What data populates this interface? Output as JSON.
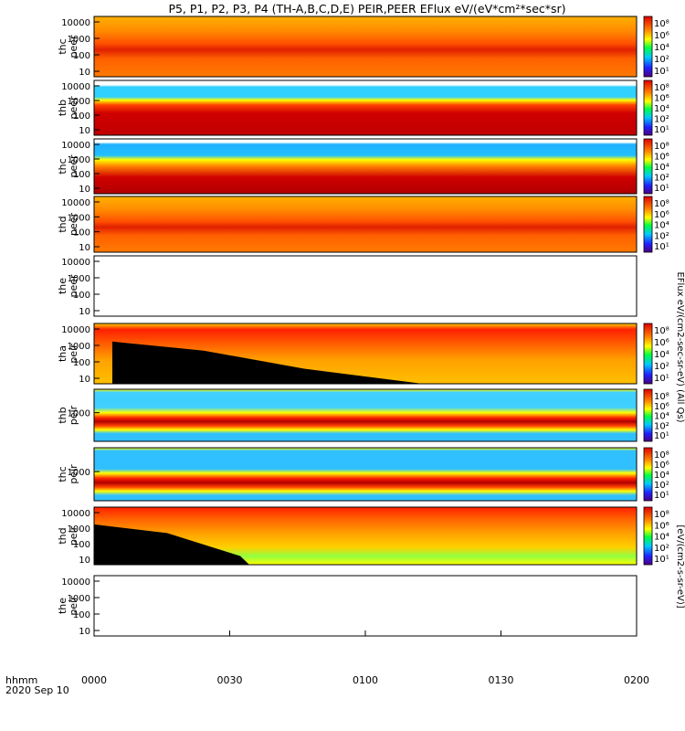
{
  "chart_data": {
    "type": "heatmap",
    "title": "P5, P1, P2, P3, P4 (TH-A,B,C,D,E) PEIR,PEER EFlux eV/(eV*cm²*sec*sr)",
    "time_axis": {
      "row_label": "hhmm",
      "date_label": "2020 Sep 10",
      "ticks": [
        "0000",
        "0030",
        "0100",
        "0130",
        "0200"
      ]
    },
    "colorbar_labels": {
      "peer": "EFlux eV/(cm2-sec-sr-eV)  (All Qs)",
      "peir": "[eV/(cm2-s-sr-eV)]"
    },
    "panels": [
      {
        "probe": "thc",
        "instrument": "peer",
        "y_ticks": [
          "10000",
          "1000",
          "100",
          "10"
        ],
        "pattern": "peer_red",
        "has_colorbar": true
      },
      {
        "probe": "thb",
        "instrument": "peer",
        "y_ticks": [
          "10000",
          "1000",
          "100",
          "10"
        ],
        "pattern": "peer_thb",
        "has_colorbar": true
      },
      {
        "probe": "thc",
        "instrument": "peer",
        "y_ticks": [
          "10000",
          "1000",
          "100",
          "10"
        ],
        "pattern": "peer_thc",
        "has_colorbar": true
      },
      {
        "probe": "thd",
        "instrument": "peer",
        "y_ticks": [
          "10000",
          "1000",
          "100",
          "10"
        ],
        "pattern": "peer_red",
        "has_colorbar": true
      },
      {
        "probe": "the",
        "instrument": "peer",
        "y_ticks": [
          "10000",
          "1000",
          "100",
          "10"
        ],
        "pattern": "empty",
        "has_colorbar": false
      },
      {
        "probe": "tha",
        "instrument": "peir",
        "y_ticks": [
          "10000",
          "1000",
          "100",
          "10"
        ],
        "pattern": "peir_tha",
        "has_colorbar": true
      },
      {
        "probe": "thb",
        "instrument": "peir",
        "y_ticks": [
          "1000"
        ],
        "pattern": "peir_thb",
        "has_colorbar": true
      },
      {
        "probe": "thc",
        "instrument": "peir",
        "y_ticks": [
          "1000"
        ],
        "pattern": "peir_thc",
        "has_colorbar": true
      },
      {
        "probe": "thd",
        "instrument": "peir",
        "y_ticks": [
          "10000",
          "1000",
          "100",
          "10"
        ],
        "pattern": "peir_thd",
        "has_colorbar": true
      },
      {
        "probe": "the",
        "instrument": "peir",
        "y_ticks": [
          "10000",
          "1000",
          "100",
          "10"
        ],
        "pattern": "empty",
        "has_colorbar": false
      }
    ],
    "colorbar_ticks": [
      "10⁸",
      "10⁶",
      "10⁴",
      "10²",
      "10¹"
    ],
    "grid": false
  }
}
